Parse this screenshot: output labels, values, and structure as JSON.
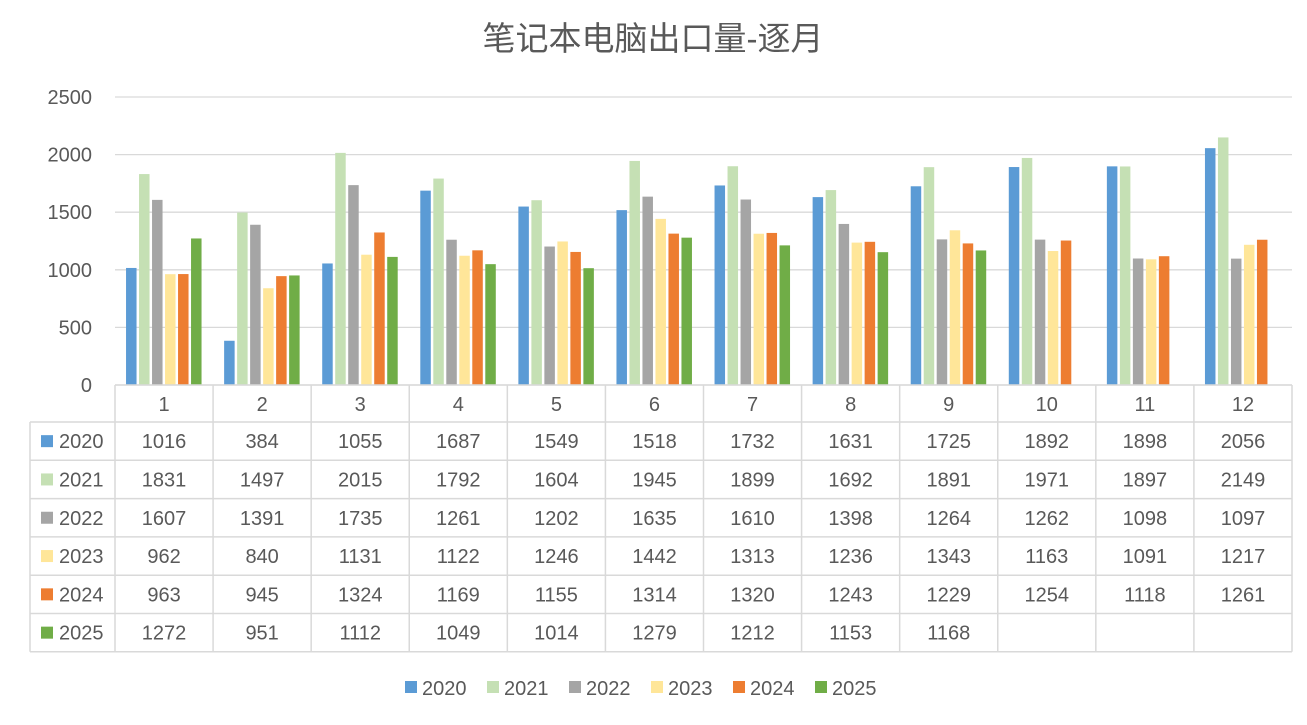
{
  "chart_data": {
    "type": "bar",
    "title": "笔记本电脑出口量-逐月",
    "xlabel": "",
    "ylabel": "",
    "ylim": [
      0,
      2500
    ],
    "yticks": [
      0,
      500,
      1000,
      1500,
      2000,
      2500
    ],
    "grid": true,
    "legend_position": "bottom",
    "categories": [
      "1",
      "2",
      "3",
      "4",
      "5",
      "6",
      "7",
      "8",
      "9",
      "10",
      "11",
      "12"
    ],
    "series": [
      {
        "name": "2020",
        "color": "#5B9BD5",
        "values": [
          1016,
          384,
          1055,
          1687,
          1549,
          1518,
          1732,
          1631,
          1725,
          1892,
          1898,
          2056
        ]
      },
      {
        "name": "2021",
        "color": "#C5E0B4",
        "values": [
          1831,
          1497,
          2015,
          1792,
          1604,
          1945,
          1899,
          1692,
          1891,
          1971,
          1897,
          2149
        ]
      },
      {
        "name": "2022",
        "color": "#A5A5A5",
        "values": [
          1607,
          1391,
          1735,
          1261,
          1202,
          1635,
          1610,
          1398,
          1264,
          1262,
          1098,
          1097
        ]
      },
      {
        "name": "2023",
        "color": "#FFE699",
        "values": [
          962,
          840,
          1131,
          1122,
          1246,
          1442,
          1313,
          1236,
          1343,
          1163,
          1091,
          1217
        ]
      },
      {
        "name": "2024",
        "color": "#ED7D31",
        "values": [
          963,
          945,
          1324,
          1169,
          1155,
          1314,
          1320,
          1243,
          1229,
          1254,
          1118,
          1261
        ]
      },
      {
        "name": "2025",
        "color": "#70AD47",
        "values": [
          1272,
          951,
          1112,
          1049,
          1014,
          1279,
          1212,
          1153,
          1168,
          null,
          null,
          null
        ]
      }
    ]
  }
}
